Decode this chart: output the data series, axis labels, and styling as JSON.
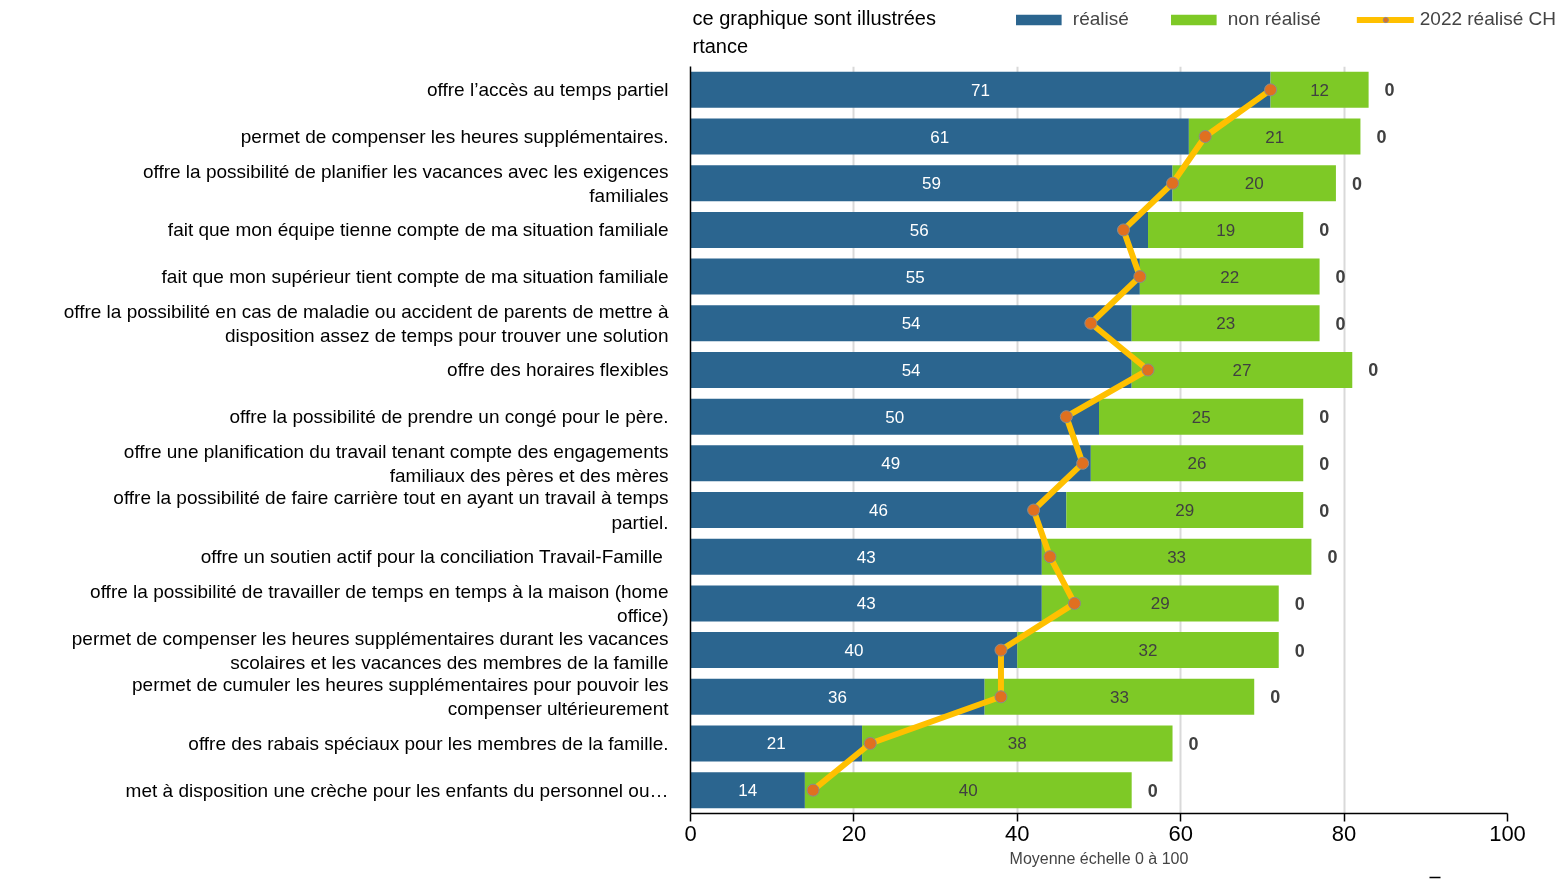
{
  "chart_data": {
    "type": "bar",
    "orientation": "horizontal",
    "stacked": true,
    "categories": [
      "offre l’accès au temps partiel",
      "permet de compenser les heures supplémentaires.",
      "offre la possibilité de planifier les vacances avec les exigences\nfamiliales",
      "fait que mon équipe tienne compte de ma situation familiale",
      "fait que mon supérieur tient compte de ma situation familiale",
      "offre la possibilité en cas de maladie ou accident de parents de mettre à\ndisposition assez de temps pour trouver une solution",
      "offre des horaires flexibles",
      "offre la possibilité de prendre un congé pour le père.",
      "offre une planification du travail tenant compte des engagements\nfamiliaux des pères et des mères",
      "offre la possibilité de faire carrière tout en ayant un travail à temps\npartiel.",
      "offre un soutien actif  pour la conciliation Travail-Famille",
      "offre la possibilité de travailler de temps en temps à la maison (home\noffice)",
      "permet de compenser les heures supplémentaires durant les vacances\nscolaires et les vacances des membres de la famille",
      "permet de cumuler les heures supplémentaires pour pouvoir les\ncompenser ultérieurement",
      "offre des rabais spéciaux pour les membres de la famille.",
      "met à disposition une crèche pour les enfants du personnel ou…"
    ],
    "series": [
      {
        "name": "réalisé",
        "color": "#2b658f",
        "values": [
          71,
          61,
          59,
          56,
          55,
          54,
          54,
          50,
          49,
          46,
          43,
          43,
          40,
          36,
          21,
          14
        ],
        "value_labels": [
          "71",
          "61",
          "59",
          "56",
          "55",
          "54",
          "54",
          "50",
          "49",
          "46",
          "43",
          "43",
          "40",
          "36",
          "21",
          "14"
        ]
      },
      {
        "name": "non réalisé",
        "color": "#7ec926",
        "values": [
          12,
          21,
          20,
          19,
          22,
          23,
          27,
          25,
          26,
          29,
          33,
          29,
          32,
          33,
          38,
          40
        ],
        "value_labels": [
          "12",
          "21",
          "20",
          "19",
          "22",
          "23",
          "27",
          "25",
          "26",
          "29",
          "33",
          "29",
          "32",
          "33",
          "38",
          "40"
        ]
      },
      {
        "name": "2022 réalisé CH",
        "type": "line",
        "color": "#ffc000",
        "colors": [
          "#e07020",
          "#e07020",
          "#e07020",
          "#e07020",
          "#e07020",
          "#e07020",
          "#e07020",
          "#e07020",
          "#e07020",
          "#e07020",
          "#e07020",
          "#e07020",
          "#e07020",
          "#e07020",
          "#e07020",
          "#e07020"
        ],
        "values": [
          71,
          63,
          59,
          53,
          55,
          49,
          56,
          46,
          48,
          42,
          44,
          47,
          38,
          38,
          22,
          15
        ]
      }
    ],
    "xlabel": "Moyenne échelle 0 à 100",
    "xlim": [
      0,
      100
    ],
    "xticks": [
      0,
      20,
      40,
      60,
      80,
      100
    ],
    "grid": "x",
    "legend": "top right",
    "marker": "circle",
    "annotations": [
      "ce graphique sont illustrées",
      "rtance",
      {
        "text": "0",
        "x": 83,
        "y": "offre l’accès au temps partiel"
      },
      {
        "text": "0",
        "x": 82,
        "y": "permet de compenser les heures supplémentaires."
      },
      {
        "text": "0",
        "x": 79,
        "y": "offre la possibilité de planifier les vacances avec les exigences\nfamiliales"
      },
      {
        "text": "0",
        "x": 75,
        "y": "fait que mon équipe tienne compte de ma situation familiale"
      },
      {
        "text": "0",
        "x": 77,
        "y": "fait que mon supérieur tient compte de ma situation familiale"
      },
      {
        "text": "0",
        "x": 77,
        "y": "offre la possibilité en cas de maladie ou accident de parents de mettre à\ndisposition assez de temps pour trouver une solution"
      },
      {
        "text": "0",
        "x": 81,
        "y": "offre des horaires flexibles"
      },
      {
        "text": "0",
        "x": 75,
        "y": "offre la possibilité de prendre un congé pour le père."
      },
      {
        "text": "0",
        "x": 75,
        "y": "offre une planification du travail tenant compte des engagements\nfamiliaux des pères et des mères"
      },
      {
        "text": "0",
        "x": 75,
        "y": "offre la possibilité de faire carrière tout en ayant un travail à temps\npartiel."
      },
      {
        "text": "0",
        "x": 76,
        "y": "offre un soutien actif  pour la conciliation Travail-Famille"
      },
      {
        "text": "0",
        "x": 72,
        "y": "offre la possibilité de travailler de temps en temps à la maison (home\noffice)"
      },
      {
        "text": "0",
        "x": 72,
        "y": "permet de compenser les heures supplémentaires durant les vacances\nscolaires et les vacances des membres de la famille"
      },
      {
        "text": "0",
        "x": 69,
        "y": "permet de cumuler les heures supplémentaires pour pouvoir les\ncompenser ultérieurement"
      },
      {
        "text": "0",
        "x": 59,
        "y": "offre des rabais spéciaux pour les membres de la famille."
      },
      {
        "text": "0",
        "x": 54,
        "y": "met à disposition une crèche pour les enfants du personnel ou…"
      }
    ]
  }
}
